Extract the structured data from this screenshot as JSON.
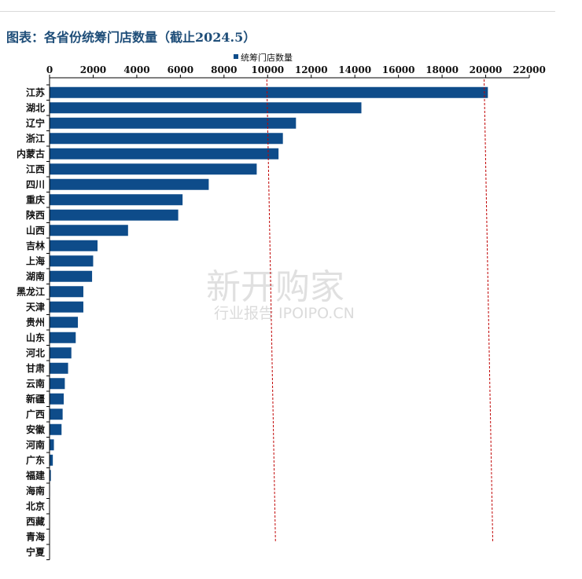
{
  "title": "图表：各省份统筹门店数量（截止2024.5）",
  "watermark": {
    "main": "新开购家",
    "sub": "行业报告 IPOIPO.CN"
  },
  "colors": {
    "bar": "#0e4c8a",
    "refline": "#c00000",
    "axis": "#000000"
  },
  "chart_data": {
    "type": "bar",
    "orientation": "horizontal",
    "title": "图表：各省份统筹门店数量（截止2024.5）",
    "xlabel": "",
    "ylabel": "",
    "xlim": [
      0,
      22000
    ],
    "xticks": [
      0,
      2000,
      4000,
      6000,
      8000,
      10000,
      12000,
      14000,
      16000,
      18000,
      20000,
      22000
    ],
    "grid": false,
    "legend": "top",
    "reference_lines": [
      10000,
      20000
    ],
    "categories": [
      "江苏",
      "湖北",
      "辽宁",
      "浙江",
      "内蒙古",
      "江西",
      "四川",
      "重庆",
      "陕西",
      "山西",
      "吉林",
      "上海",
      "湖南",
      "黑龙江",
      "天津",
      "贵州",
      "山东",
      "河北",
      "甘肃",
      "云南",
      "新疆",
      "广西",
      "安徽",
      "河南",
      "广东",
      "福建",
      "海南",
      "北京",
      "西藏",
      "青海",
      "宁夏"
    ],
    "series": [
      {
        "name": "统筹门店数量",
        "values": [
          20100,
          14300,
          11300,
          10700,
          10500,
          9500,
          7300,
          6100,
          5900,
          3600,
          2200,
          2000,
          1950,
          1550,
          1550,
          1300,
          1200,
          1000,
          850,
          700,
          650,
          600,
          550,
          200,
          150,
          60,
          20,
          10,
          5,
          5,
          5
        ]
      }
    ]
  }
}
